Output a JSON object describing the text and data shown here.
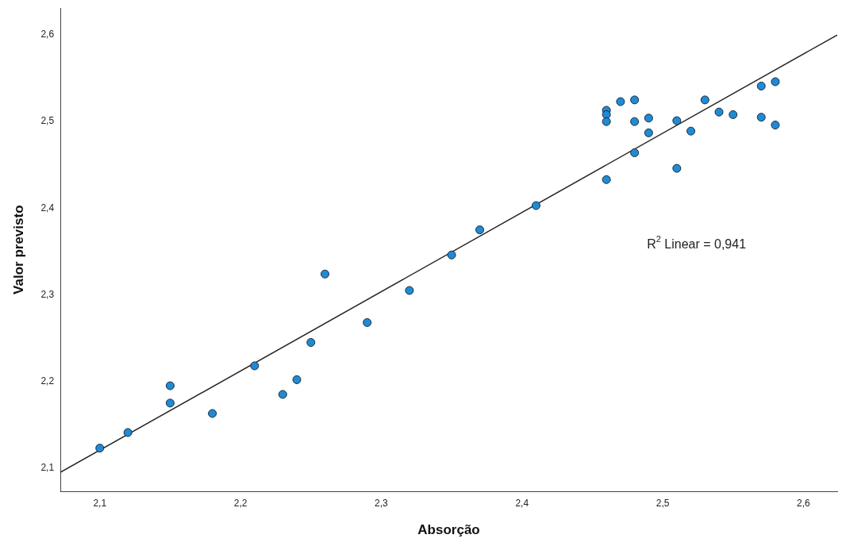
{
  "chart_data": {
    "type": "scatter",
    "xlabel": "Absorção",
    "ylabel": "Valor previsto",
    "xlim": [
      2.072,
      2.624
    ],
    "ylim": [
      2.073,
      2.631
    ],
    "xticks": [
      {
        "value": 2.1,
        "label": "2,1"
      },
      {
        "value": 2.2,
        "label": "2,2"
      },
      {
        "value": 2.3,
        "label": "2,3"
      },
      {
        "value": 2.4,
        "label": "2,4"
      },
      {
        "value": 2.5,
        "label": "2,5"
      },
      {
        "value": 2.6,
        "label": "2,6"
      }
    ],
    "yticks": [
      {
        "value": 2.1,
        "label": "2,1"
      },
      {
        "value": 2.2,
        "label": "2,2"
      },
      {
        "value": 2.3,
        "label": "2,3"
      },
      {
        "value": 2.4,
        "label": "2,4"
      },
      {
        "value": 2.5,
        "label": "2,5"
      },
      {
        "value": 2.6,
        "label": "2,6"
      }
    ],
    "grid": false,
    "legend": false,
    "marker": "circle",
    "annotations": [
      "R$^{2}$ Linear = 0,941"
    ],
    "series": [
      {
        "type": "scatter",
        "color": "#1f8bd6",
        "x": [
          2.1,
          2.12,
          2.15,
          2.15,
          2.18,
          2.21,
          2.23,
          2.24,
          2.25,
          2.26,
          2.29,
          2.32,
          2.35,
          2.37,
          2.41,
          2.46,
          2.46,
          2.46,
          2.46,
          2.47,
          2.48,
          2.48,
          2.48,
          2.49,
          2.49,
          2.51,
          2.51,
          2.52,
          2.53,
          2.54,
          2.55,
          2.57,
          2.57,
          2.58,
          2.58
        ],
        "values": [
          2.123,
          2.141,
          2.195,
          2.175,
          2.163,
          2.218,
          2.185,
          2.202,
          2.245,
          2.324,
          2.268,
          2.305,
          2.346,
          2.375,
          2.403,
          2.513,
          2.508,
          2.5,
          2.433,
          2.523,
          2.525,
          2.5,
          2.464,
          2.504,
          2.487,
          2.501,
          2.446,
          2.489,
          2.525,
          2.511,
          2.508,
          2.541,
          2.505,
          2.546,
          2.496
        ]
      },
      {
        "type": "line",
        "color": "#222222",
        "marker": "none",
        "line_style": "solid",
        "x": [
          2.072,
          2.624
        ],
        "values": [
          2.095,
          2.6
        ]
      }
    ]
  }
}
